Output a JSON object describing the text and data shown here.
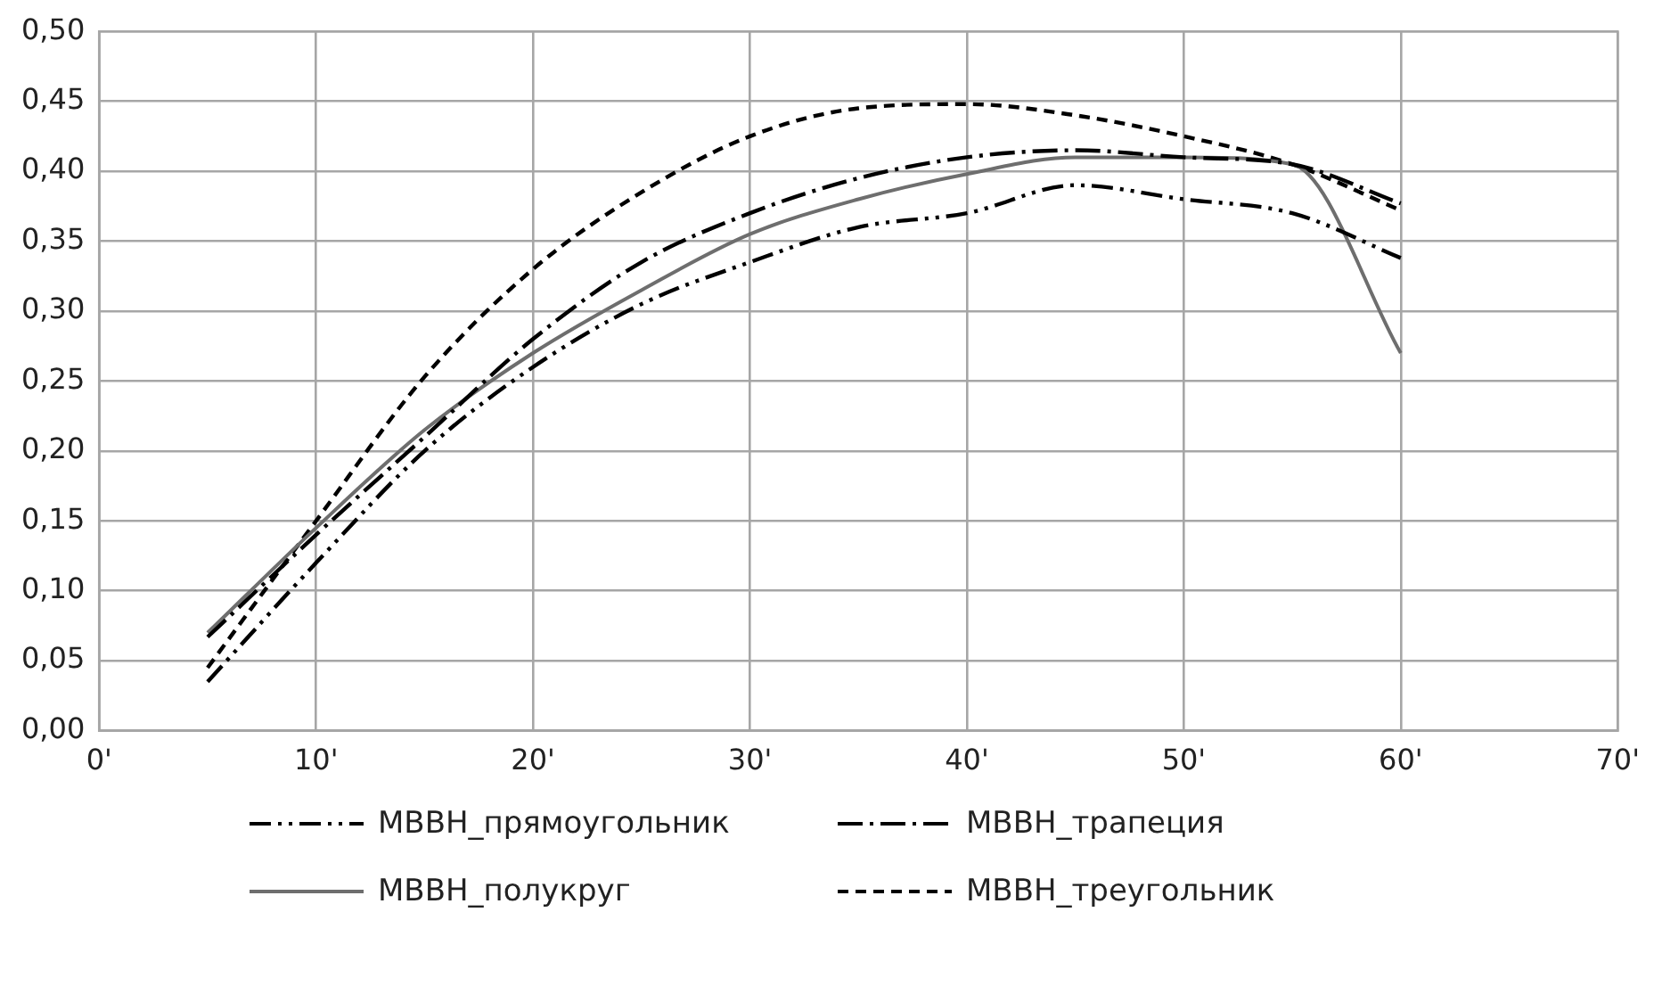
{
  "chart_data": {
    "type": "line",
    "x": [
      5,
      10,
      15,
      20,
      25,
      30,
      35,
      40,
      45,
      50,
      55,
      60
    ],
    "series": [
      {
        "name": "МВВН_прямоугольник",
        "color": "#000000",
        "line_style": "dashdotdot",
        "values": [
          0.035,
          0.12,
          0.2,
          0.26,
          0.305,
          0.335,
          0.36,
          0.37,
          0.39,
          0.38,
          0.37,
          0.338
        ]
      },
      {
        "name": "МВВН_трапеция",
        "color": "#000000",
        "line_style": "dashdot",
        "values": [
          0.067,
          0.14,
          0.21,
          0.28,
          0.335,
          0.37,
          0.395,
          0.41,
          0.415,
          0.41,
          0.405,
          0.377
        ]
      },
      {
        "name": "МВВН_полукруг",
        "color": "#6e6e6e",
        "line_style": "solid",
        "values": [
          0.07,
          0.145,
          0.215,
          0.27,
          0.315,
          0.355,
          0.38,
          0.398,
          0.41,
          0.41,
          0.405,
          0.27
        ]
      },
      {
        "name": "МВВН_треугольник",
        "color": "#000000",
        "line_style": "dashed",
        "values": [
          0.045,
          0.15,
          0.253,
          0.33,
          0.385,
          0.425,
          0.445,
          0.448,
          0.44,
          0.425,
          0.405,
          0.372
        ]
      }
    ],
    "xlim": [
      0,
      70
    ],
    "xticks": [
      {
        "value": 0,
        "label": "0'"
      },
      {
        "value": 10,
        "label": "10'"
      },
      {
        "value": 20,
        "label": "20'"
      },
      {
        "value": 30,
        "label": "30'"
      },
      {
        "value": 40,
        "label": "40'"
      },
      {
        "value": 50,
        "label": "50'"
      },
      {
        "value": 60,
        "label": "60'"
      },
      {
        "value": 70,
        "label": "70'"
      }
    ],
    "ylim": [
      0,
      0.5
    ],
    "yticks": [
      {
        "value": 0,
        "label": "0,00"
      },
      {
        "value": 0.05,
        "label": "0,05"
      },
      {
        "value": 0.1,
        "label": "0,10"
      },
      {
        "value": 0.15,
        "label": "0,15"
      },
      {
        "value": 0.2,
        "label": "0,20"
      },
      {
        "value": 0.25,
        "label": "0,25"
      },
      {
        "value": 0.3,
        "label": "0,30"
      },
      {
        "value": 0.35,
        "label": "0,35"
      },
      {
        "value": 0.4,
        "label": "0,40"
      },
      {
        "value": 0.45,
        "label": "0,45"
      },
      {
        "value": 0.5,
        "label": "0,50"
      }
    ],
    "grid": true,
    "legend": "bottom",
    "marker": "none"
  }
}
